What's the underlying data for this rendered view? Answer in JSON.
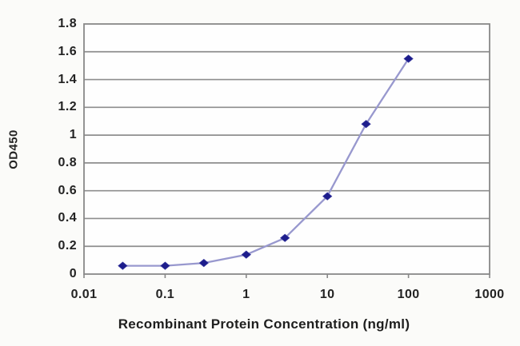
{
  "chart_data": {
    "type": "line",
    "title": "",
    "xlabel": "Recombinant Protein Concentration (ng/ml)",
    "ylabel": "OD450",
    "xscale": "log",
    "xlim": [
      0.01,
      1000
    ],
    "ylim": [
      0,
      1.8
    ],
    "x": [
      0.03,
      0.1,
      0.3,
      1,
      3,
      10,
      30,
      100
    ],
    "y": [
      0.06,
      0.06,
      0.08,
      0.14,
      0.26,
      0.56,
      1.08,
      1.55
    ],
    "xtick_values": [
      0.01,
      0.1,
      1,
      10,
      100,
      1000
    ],
    "xtick_labels": [
      "0.01",
      "0.1",
      "1",
      "10",
      "100",
      "1000"
    ],
    "ytick_values": [
      0,
      0.2,
      0.4,
      0.6,
      0.8,
      1,
      1.2,
      1.4,
      1.6,
      1.8
    ],
    "ytick_labels": [
      "0",
      "0.2",
      "0.4",
      "0.6",
      "0.8",
      "1",
      "1.2",
      "1.4",
      "1.6",
      "1.8"
    ],
    "grid": "horizontal",
    "legend": "none",
    "marker_shape": "diamond",
    "colors": {
      "line": "#9898ce",
      "marker": "#1d1d8c",
      "grid": "#8e8e8e",
      "frame": "#888888",
      "text": "#232323",
      "plot_bg": "#fefefe"
    }
  }
}
